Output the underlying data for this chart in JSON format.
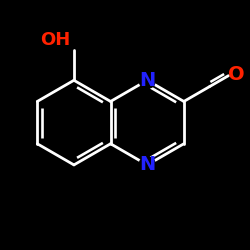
{
  "bg_color": "#000000",
  "bond_color": "#ffffff",
  "N_color": "#2222ff",
  "O_color": "#ff2200",
  "bond_width": 2.0,
  "font_size_N": 14,
  "font_size_O": 14,
  "font_size_OH": 13,
  "fig_width": 2.5,
  "fig_height": 2.5,
  "dpi": 100,
  "xlim": [
    -2.4,
    2.8
  ],
  "ylim": [
    -2.2,
    2.4
  ]
}
